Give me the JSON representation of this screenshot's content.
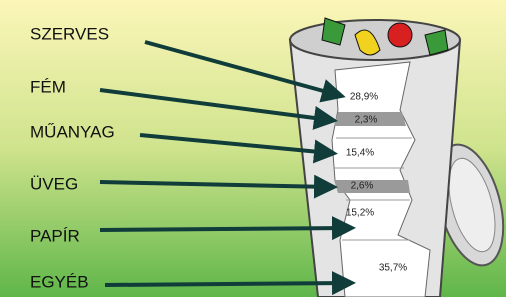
{
  "items": [
    {
      "label": "SZERVES",
      "share": "28,9%"
    },
    {
      "label": "FÉM",
      "share": "2,3%"
    },
    {
      "label": "MŰANYAG",
      "share": "15,4%"
    },
    {
      "label": "ÜVEG",
      "share": "2,6%"
    },
    {
      "label": "PAPÍR",
      "share": "15,2%"
    },
    {
      "label": "EGYÉB",
      "share": "35,7%"
    }
  ]
}
